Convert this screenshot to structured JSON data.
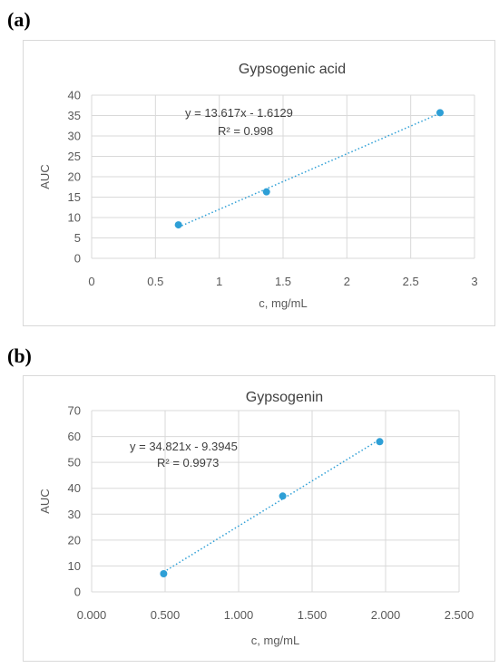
{
  "panels": [
    {
      "label": "(a)"
    },
    {
      "label": "(b)"
    }
  ],
  "chart_data": [
    {
      "type": "scatter",
      "title": "Gypsogenic acid",
      "xlabel": "c, mg/mL",
      "ylabel": "AUC",
      "xlim": [
        0,
        3
      ],
      "ylim": [
        0,
        40
      ],
      "xticks": [
        0,
        0.5,
        1,
        1.5,
        2,
        2.5,
        3
      ],
      "xtick_labels": [
        "0",
        "0.5",
        "1",
        "1.5",
        "2",
        "2.5",
        "3"
      ],
      "yticks": [
        0,
        5,
        10,
        15,
        20,
        25,
        30,
        35,
        40
      ],
      "ytick_labels": [
        "0",
        "5",
        "10",
        "15",
        "20",
        "25",
        "30",
        "35",
        "40"
      ],
      "points": [
        {
          "x": 0.68,
          "y": 8.2
        },
        {
          "x": 1.37,
          "y": 16.3
        },
        {
          "x": 2.73,
          "y": 35.7
        }
      ],
      "trendline": {
        "slope": 13.617,
        "intercept": -1.6129,
        "x_range": [
          0.68,
          2.73
        ]
      },
      "equation": "y = 13.617x - 1.6129",
      "r_squared": "R² = 0.998",
      "grid": true,
      "colors": {
        "marker": "#2e9fd6",
        "trendline": "#2e9fd6",
        "grid": "#d9d9d9"
      }
    },
    {
      "type": "scatter",
      "title": "Gypsogenin",
      "xlabel": "c, mg/mL",
      "ylabel": "AUC",
      "xlim": [
        0,
        2.5
      ],
      "ylim": [
        0,
        70
      ],
      "xticks": [
        0,
        0.5,
        1,
        1.5,
        2,
        2.5
      ],
      "xtick_labels": [
        "0.000",
        "0.500",
        "1.000",
        "1.500",
        "2.000",
        "2.500"
      ],
      "yticks": [
        0,
        10,
        20,
        30,
        40,
        50,
        60,
        70
      ],
      "ytick_labels": [
        "0",
        "10",
        "20",
        "30",
        "40",
        "50",
        "60",
        "70"
      ],
      "points": [
        {
          "x": 0.49,
          "y": 7.0
        },
        {
          "x": 1.3,
          "y": 37.0
        },
        {
          "x": 1.96,
          "y": 58.0
        }
      ],
      "trendline": {
        "slope": 34.821,
        "intercept": -9.3945,
        "x_range": [
          0.49,
          1.96
        ]
      },
      "equation": "y = 34.821x - 9.3945",
      "r_squared": "R² = 0.9973",
      "grid": true,
      "colors": {
        "marker": "#2e9fd6",
        "trendline": "#2e9fd6",
        "grid": "#d9d9d9"
      }
    }
  ]
}
